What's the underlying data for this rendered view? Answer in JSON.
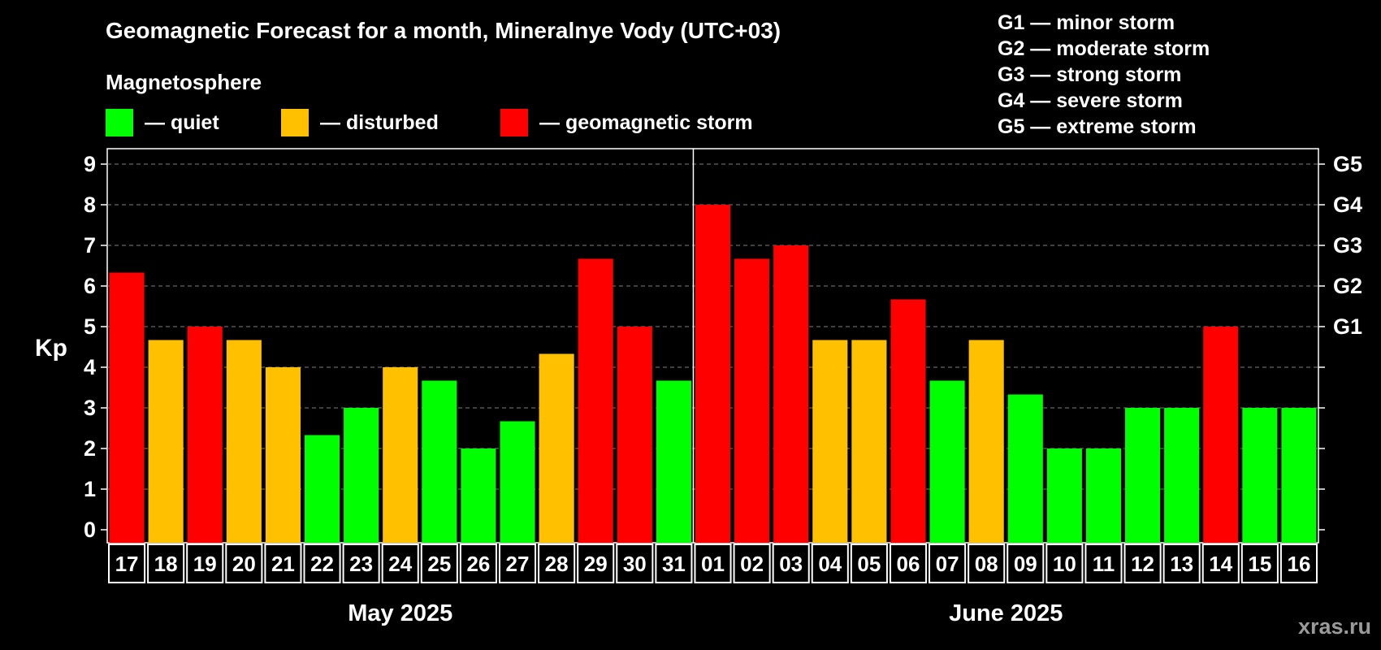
{
  "title": "Geomagnetic Forecast for a month, Mineralnye Vody (UTC+03)",
  "legend": {
    "title": "Magnetosphere",
    "items": [
      {
        "label": "— quiet",
        "color": "#00ff00"
      },
      {
        "label": "— disturbed",
        "color": "#ffc000"
      },
      {
        "label": "— geomagnetic storm",
        "color": "#ff0000"
      }
    ]
  },
  "storm_scale": [
    "G1 — minor storm",
    "G2 — moderate storm",
    "G3 — strong storm",
    "G4 — severe storm",
    "G5 — extreme storm"
  ],
  "watermark": "xras.ru",
  "chart_data": {
    "type": "bar",
    "ylabel": "Kp",
    "ylim": [
      0,
      9
    ],
    "yticks": [
      "0",
      "1",
      "2",
      "3",
      "4",
      "5",
      "6",
      "7",
      "8",
      "9"
    ],
    "right_axis_labels": [
      {
        "value": 5,
        "label": "G1"
      },
      {
        "value": 6,
        "label": "G2"
      },
      {
        "value": 7,
        "label": "G3"
      },
      {
        "value": 8,
        "label": "G4"
      },
      {
        "value": 9,
        "label": "G5"
      }
    ],
    "grid": true,
    "categories": [
      "17",
      "18",
      "19",
      "20",
      "21",
      "22",
      "23",
      "24",
      "25",
      "26",
      "27",
      "28",
      "29",
      "30",
      "31",
      "01",
      "02",
      "03",
      "04",
      "05",
      "06",
      "07",
      "08",
      "09",
      "10",
      "11",
      "12",
      "13",
      "14",
      "15",
      "16"
    ],
    "values": [
      6.33,
      4.67,
      5.0,
      4.67,
      4.0,
      2.33,
      3.0,
      4.0,
      3.67,
      2.0,
      2.67,
      4.33,
      6.67,
      5.0,
      3.67,
      8.0,
      6.67,
      7.0,
      4.67,
      4.67,
      5.67,
      3.67,
      4.67,
      3.33,
      2.0,
      2.0,
      3.0,
      3.0,
      5.0,
      3.0,
      3.0
    ],
    "levels": [
      "storm",
      "disturbed",
      "storm",
      "disturbed",
      "disturbed",
      "quiet",
      "quiet",
      "disturbed",
      "quiet",
      "quiet",
      "quiet",
      "disturbed",
      "storm",
      "storm",
      "quiet",
      "storm",
      "storm",
      "storm",
      "disturbed",
      "disturbed",
      "storm",
      "quiet",
      "disturbed",
      "quiet",
      "quiet",
      "quiet",
      "quiet",
      "quiet",
      "storm",
      "quiet",
      "quiet"
    ],
    "months": [
      {
        "label": "May 2025",
        "start": 0,
        "end": 14
      },
      {
        "label": "June 2025",
        "start": 15,
        "end": 30
      }
    ]
  },
  "colors": {
    "quiet": "#00ff00",
    "disturbed": "#ffc000",
    "storm": "#ff0000",
    "grid": "#808080",
    "axis": "#ffffff"
  }
}
